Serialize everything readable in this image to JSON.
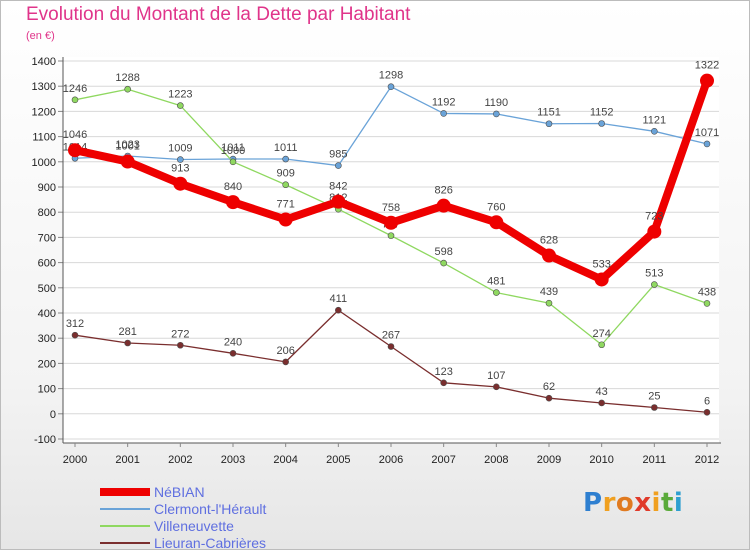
{
  "title": "Evolution du Montant de la Dette par Habitant",
  "subtitle": "(en €)",
  "brand": {
    "letters": [
      {
        "ch": "P",
        "color": "#2e7fd0"
      },
      {
        "ch": "r",
        "color": "#f0a020"
      },
      {
        "ch": "o",
        "color": "#e07a20"
      },
      {
        "ch": "x",
        "color": "#e03a2a"
      },
      {
        "ch": "i",
        "color": "#f0a020"
      },
      {
        "ch": "t",
        "color": "#5aaa3a"
      },
      {
        "ch": "i",
        "color": "#2e9fd0"
      }
    ]
  },
  "chart_data": {
    "type": "line",
    "x": [
      2000,
      2001,
      2002,
      2003,
      2004,
      2005,
      2006,
      2007,
      2008,
      2009,
      2010,
      2011,
      2012
    ],
    "ylim": [
      -100,
      1400
    ],
    "yticks": [
      -100,
      0,
      100,
      200,
      300,
      400,
      500,
      600,
      700,
      800,
      900,
      1000,
      1100,
      1200,
      1300,
      1400
    ],
    "grid": "horizontal",
    "legend_position": "bottom-left",
    "series": [
      {
        "name": "NéBIAN",
        "color": "#ee0000",
        "width": 8,
        "marker": 7,
        "values": [
          1046,
          1001,
          913,
          840,
          771,
          842,
          758,
          826,
          760,
          628,
          533,
          723,
          1322
        ]
      },
      {
        "name": "Clermont-l'Hérault",
        "color": "#6aa3d8",
        "width": 1.3,
        "marker": 3,
        "values": [
          1014,
          1023,
          1009,
          1011,
          1011,
          985,
          1298,
          1192,
          1190,
          1151,
          1152,
          1121,
          1071
        ]
      },
      {
        "name": "Villeneuvette",
        "color": "#8fd860",
        "width": 1.3,
        "marker": 3,
        "values": [
          1246,
          1288,
          1223,
          1000,
          909,
          812,
          707,
          598,
          481,
          439,
          274,
          513,
          438
        ]
      },
      {
        "name": "Lieuran-Cabrières",
        "color": "#7a2e2e",
        "width": 1.3,
        "marker": 3,
        "values": [
          312,
          281,
          272,
          240,
          206,
          411,
          267,
          123,
          107,
          62,
          43,
          25,
          6
        ]
      }
    ]
  }
}
